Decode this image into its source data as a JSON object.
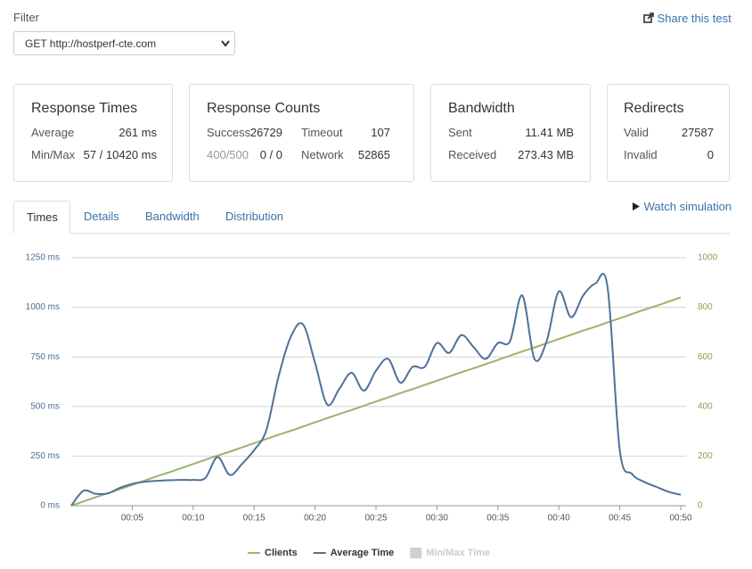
{
  "filter": {
    "label": "Filter",
    "selected": "GET http://hostperf-cte.com"
  },
  "share": "Share this test",
  "cards": [
    {
      "title": "Response Times",
      "rows": [
        [
          "Average",
          "261 ms"
        ],
        [
          "Min/Max",
          "57 / 10420 ms"
        ]
      ]
    },
    {
      "title": "Response Counts",
      "rows": [
        [
          "Success",
          "26729",
          "Timeout",
          "107"
        ],
        [
          "400/500",
          "0 / 0",
          "Network",
          "52865"
        ]
      ]
    },
    {
      "title": "Bandwidth",
      "rows": [
        [
          "Sent",
          "11.41 MB"
        ],
        [
          "Received",
          "273.43 MB"
        ]
      ]
    },
    {
      "title": "Redirects",
      "rows": [
        [
          "Valid",
          "27587"
        ],
        [
          "Invalid",
          "0"
        ]
      ]
    }
  ],
  "tabs": [
    "Times",
    "Details",
    "Bandwidth",
    "Distribution"
  ],
  "active_tab": "Times",
  "watch": "Watch simulation",
  "chart_data": {
    "type": "line",
    "x": [
      0,
      1,
      2,
      3,
      4,
      5,
      6,
      7,
      8,
      9,
      10,
      11,
      12,
      13,
      14,
      15,
      16,
      17,
      18,
      19,
      20,
      21,
      22,
      23,
      24,
      25,
      26,
      27,
      28,
      29,
      30,
      31,
      32,
      33,
      34,
      35,
      36,
      37,
      38,
      39,
      40,
      41,
      42,
      43,
      44,
      45,
      46,
      47,
      48,
      49,
      50
    ],
    "xlim": [
      0,
      50
    ],
    "xticks": [
      {
        "value": 5,
        "label": "00:05"
      },
      {
        "value": 10,
        "label": "00:10"
      },
      {
        "value": 15,
        "label": "00:15"
      },
      {
        "value": 20,
        "label": "00:20"
      },
      {
        "value": 25,
        "label": "00:25"
      },
      {
        "value": 30,
        "label": "00:30"
      },
      {
        "value": 35,
        "label": "00:35"
      },
      {
        "value": 40,
        "label": "00:40"
      },
      {
        "value": 45,
        "label": "00:45"
      },
      {
        "value": 50,
        "label": "00:50"
      }
    ],
    "ylim": [
      0,
      1250
    ],
    "yticks": [
      {
        "value": 0,
        "label": "0 ms"
      },
      {
        "value": 250,
        "label": "250 ms"
      },
      {
        "value": 500,
        "label": "500 ms"
      },
      {
        "value": 750,
        "label": "750 ms"
      },
      {
        "value": 1000,
        "label": "1000 ms"
      },
      {
        "value": 1250,
        "label": "1250 ms"
      }
    ],
    "y2lim": [
      0,
      1000
    ],
    "y2ticks": [
      0,
      200,
      400,
      600,
      800,
      1000
    ],
    "grid": true,
    "series": [
      {
        "name": "Clients",
        "color": "#9cb36b",
        "axis": "y2",
        "values": [
          0,
          17,
          34,
          50,
          67,
          84,
          101,
          118,
          134,
          151,
          168,
          185,
          202,
          218,
          235,
          252,
          269,
          286,
          302,
          319,
          336,
          353,
          370,
          386,
          403,
          420,
          437,
          454,
          470,
          487,
          504,
          521,
          538,
          554,
          571,
          588,
          605,
          622,
          638,
          655,
          672,
          689,
          706,
          722,
          739,
          756,
          773,
          790,
          806,
          823,
          840
        ]
      },
      {
        "name": "Average Time",
        "color": "#4f7199",
        "values": [
          0,
          75,
          60,
          62,
          90,
          110,
          120,
          125,
          128,
          130,
          130,
          140,
          245,
          155,
          210,
          280,
          380,
          650,
          850,
          915,
          720,
          510,
          590,
          670,
          580,
          680,
          740,
          620,
          700,
          700,
          820,
          770,
          860,
          800,
          740,
          820,
          830,
          1060,
          740,
          830,
          1080,
          950,
          1060,
          1120,
          1100,
          280,
          160,
          120,
          95,
          70,
          55
        ]
      }
    ],
    "hidden_series": [
      {
        "name": "Min/Max Time",
        "color": "#d0d0d0"
      }
    ]
  }
}
